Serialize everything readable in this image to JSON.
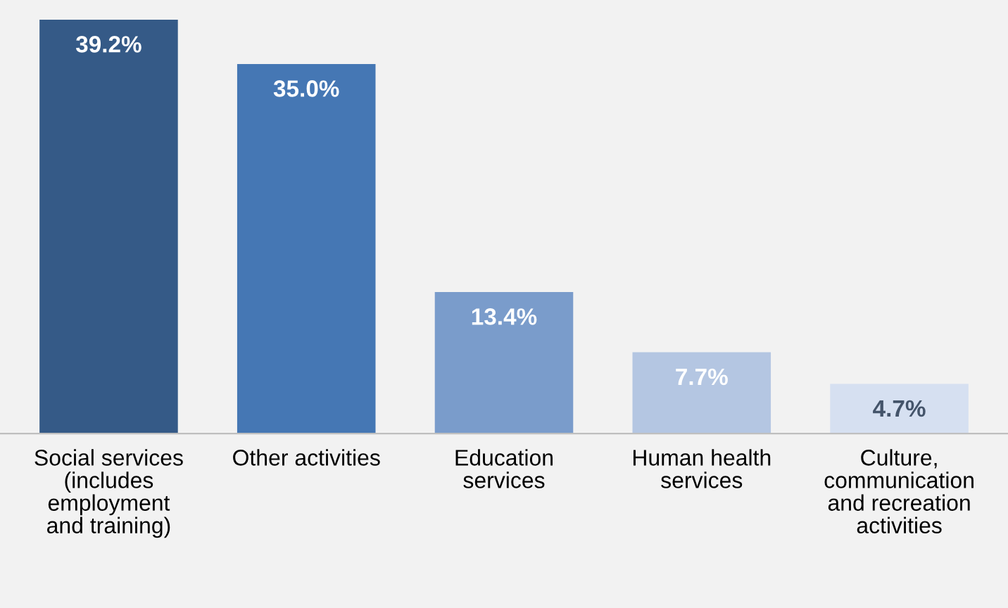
{
  "chart_data": {
    "type": "bar",
    "categories": [
      "Social services\n(includes\nemployment\nand training)",
      "Other activities",
      "Education\nservices",
      "Human health\nservices",
      "Culture,\ncommunication\nand recreation\nactivities"
    ],
    "values": [
      39.2,
      35.0,
      13.4,
      7.7,
      4.7
    ],
    "colors": [
      "#355a87",
      "#4577b4",
      "#7a9ccb",
      "#b4c6e2",
      "#d6e0f1"
    ],
    "value_labels": [
      "39.2%",
      "35.0%",
      "13.4%",
      "7.7%",
      "4.7%"
    ],
    "grid": false,
    "legend": false
  }
}
